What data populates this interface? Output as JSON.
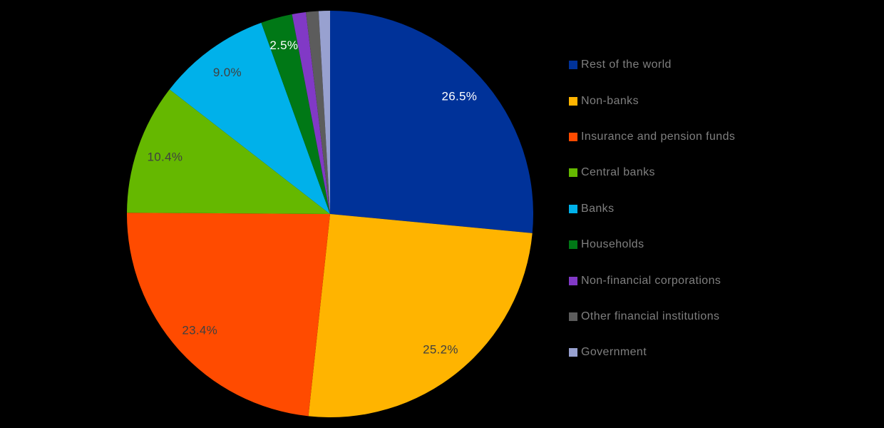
{
  "chart_data": {
    "type": "pie",
    "title": "",
    "legend_position": "right",
    "background": "#000000",
    "start_angle_deg": 0,
    "direction": "clockwise",
    "data_label_format": "percent",
    "slices": [
      {
        "label": "Rest of the world",
        "value": 26.5,
        "data_label": "26.5%",
        "color": "#003299",
        "label_color": "#FFFFFF"
      },
      {
        "label": "Non-banks",
        "value": 25.2,
        "data_label": "25.2%",
        "color": "#FFB400",
        "label_color": "#404040"
      },
      {
        "label": "Insurance and pension funds",
        "value": 23.4,
        "data_label": "23.4%",
        "color": "#FF4B00",
        "label_color": "#404040"
      },
      {
        "label": "Central banks",
        "value": 10.4,
        "data_label": "10.4%",
        "color": "#65B800",
        "label_color": "#404040"
      },
      {
        "label": "Banks",
        "value": 9.0,
        "data_label": "9.0%",
        "color": "#00B1EA",
        "label_color": "#404040"
      },
      {
        "label": "Households",
        "value": 2.5,
        "data_label": "2.5%",
        "color": "#007816",
        "label_color": "#FFFFFF"
      },
      {
        "label": "Non-financial corporations",
        "value": 1.1,
        "data_label": "",
        "color": "#8139C6",
        "label_color": ""
      },
      {
        "label": "Other financial institutions",
        "value": 1.0,
        "data_label": "",
        "color": "#5C5C5C",
        "label_color": ""
      },
      {
        "label": "Government",
        "value": 0.9,
        "data_label": "",
        "color": "#98A1D0",
        "label_color": ""
      }
    ],
    "legend_text_color": "#7F7F7F"
  }
}
